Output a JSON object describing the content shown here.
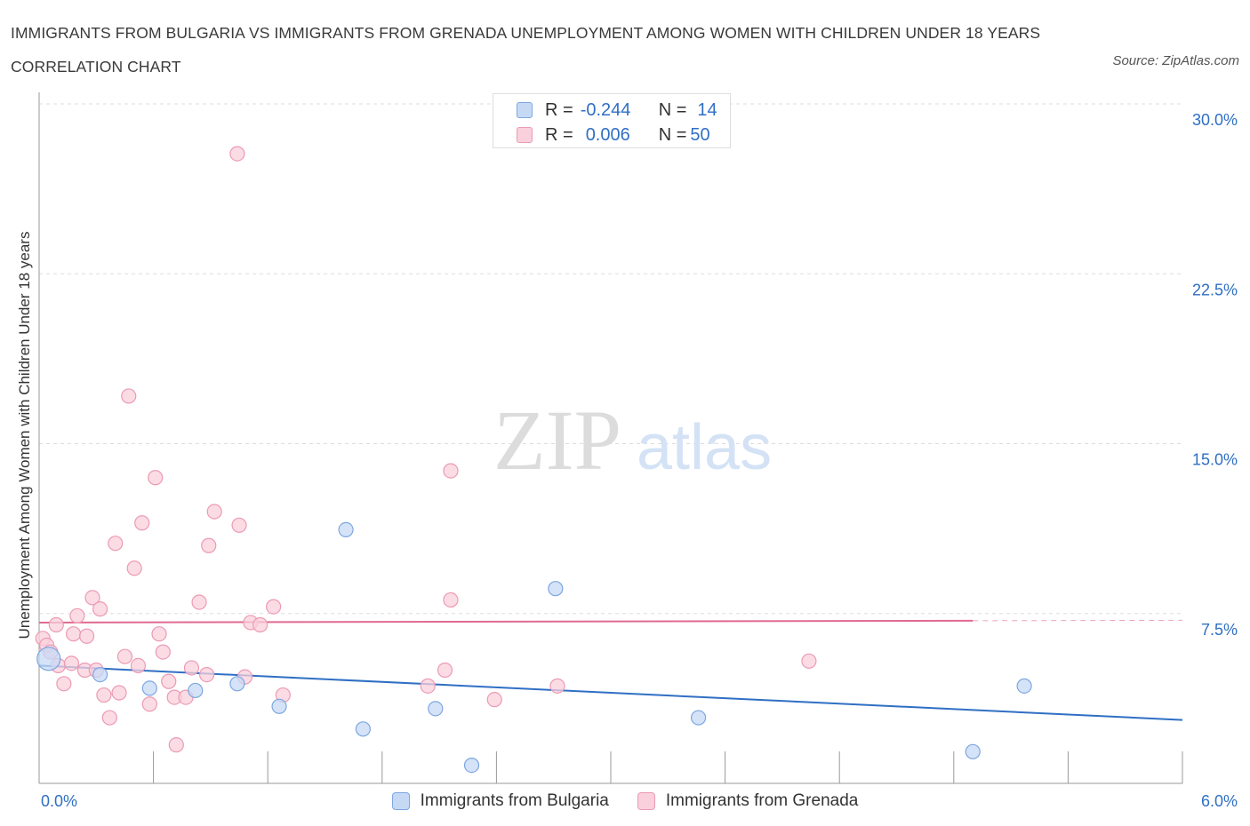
{
  "header": {
    "title": "IMMIGRANTS FROM BULGARIA VS IMMIGRANTS FROM GRENADA UNEMPLOYMENT AMONG WOMEN WITH CHILDREN UNDER 18 YEARS CORRELATION CHART",
    "source": "Source: ZipAtlas.com"
  },
  "watermark": {
    "zip": "ZIP",
    "atlas": "atlas"
  },
  "colors": {
    "bulgaria_fill": "#c5d9f5",
    "bulgaria_stroke": "#7ea6df",
    "bulgaria_line": "#2f6fc4",
    "grenada_fill": "#f9d0dc",
    "grenada_stroke": "#ec9ab4",
    "grenada_line": "#e0698f",
    "axis_text": "#2f6fc4",
    "grid": "#dddddd"
  },
  "legend": {
    "rows": [
      {
        "r_label": "R =",
        "r_value": "-0.244",
        "n_label": "N =",
        "n_value": "14"
      },
      {
        "r_label": "R =",
        "r_value": "0.006",
        "n_label": "N =",
        "n_value": "50"
      }
    ],
    "bottom": [
      "Immigrants from Bulgaria",
      "Immigrants from Grenada"
    ]
  },
  "chart_data": {
    "type": "scatter",
    "title": "IMMIGRANTS FROM BULGARIA VS IMMIGRANTS FROM GRENADA UNEMPLOYMENT AMONG WOMEN WITH CHILDREN UNDER 18 YEARS CORRELATION CHART",
    "xlabel": "",
    "ylabel": "Unemployment Among Women with Children Under 18 years",
    "xlim": [
      0,
      6
    ],
    "ylim": [
      0,
      30
    ],
    "x_tick_labels": [
      "0.0%",
      "6.0%"
    ],
    "y_tick_labels": [
      "7.5%",
      "15.0%",
      "22.5%",
      "30.0%"
    ],
    "y_ticks": [
      7.5,
      15.0,
      22.5,
      30.0
    ],
    "grid": true,
    "legend_position": "top-center",
    "series": [
      {
        "name": "Immigrants from Bulgaria",
        "points": [
          {
            "x": 0.05,
            "y": 5.5
          },
          {
            "x": 0.32,
            "y": 4.8
          },
          {
            "x": 0.58,
            "y": 4.2
          },
          {
            "x": 0.82,
            "y": 4.1
          },
          {
            "x": 1.04,
            "y": 4.4
          },
          {
            "x": 1.26,
            "y": 3.4
          },
          {
            "x": 1.61,
            "y": 11.2
          },
          {
            "x": 1.7,
            "y": 2.4
          },
          {
            "x": 2.08,
            "y": 3.3
          },
          {
            "x": 2.27,
            "y": 0.8
          },
          {
            "x": 2.71,
            "y": 8.6
          },
          {
            "x": 3.46,
            "y": 2.9
          },
          {
            "x": 4.9,
            "y": 1.4
          },
          {
            "x": 5.17,
            "y": 4.3
          }
        ],
        "trend": {
          "x": [
            0,
            6
          ],
          "y": [
            5.2,
            2.8
          ]
        }
      },
      {
        "name": "Immigrants from Grenada",
        "points": [
          {
            "x": 0.02,
            "y": 6.4
          },
          {
            "x": 0.04,
            "y": 6.1
          },
          {
            "x": 0.06,
            "y": 5.8
          },
          {
            "x": 0.09,
            "y": 7.0
          },
          {
            "x": 0.1,
            "y": 5.2
          },
          {
            "x": 0.13,
            "y": 4.4
          },
          {
            "x": 0.17,
            "y": 5.3
          },
          {
            "x": 0.18,
            "y": 6.6
          },
          {
            "x": 0.2,
            "y": 7.4
          },
          {
            "x": 0.24,
            "y": 5.0
          },
          {
            "x": 0.25,
            "y": 6.5
          },
          {
            "x": 0.28,
            "y": 8.2
          },
          {
            "x": 0.3,
            "y": 5.0
          },
          {
            "x": 0.32,
            "y": 7.7
          },
          {
            "x": 0.34,
            "y": 3.9
          },
          {
            "x": 0.37,
            "y": 2.9
          },
          {
            "x": 0.4,
            "y": 10.6
          },
          {
            "x": 0.42,
            "y": 4.0
          },
          {
            "x": 0.45,
            "y": 5.6
          },
          {
            "x": 0.47,
            "y": 17.1
          },
          {
            "x": 0.5,
            "y": 9.5
          },
          {
            "x": 0.52,
            "y": 5.2
          },
          {
            "x": 0.54,
            "y": 11.5
          },
          {
            "x": 0.58,
            "y": 3.5
          },
          {
            "x": 0.61,
            "y": 13.5
          },
          {
            "x": 0.63,
            "y": 6.6
          },
          {
            "x": 0.65,
            "y": 5.8
          },
          {
            "x": 0.68,
            "y": 4.5
          },
          {
            "x": 0.71,
            "y": 3.8
          },
          {
            "x": 0.72,
            "y": 1.7
          },
          {
            "x": 0.77,
            "y": 3.8
          },
          {
            "x": 0.8,
            "y": 5.1
          },
          {
            "x": 0.84,
            "y": 8.0
          },
          {
            "x": 0.88,
            "y": 4.8
          },
          {
            "x": 0.89,
            "y": 10.5
          },
          {
            "x": 0.92,
            "y": 12.0
          },
          {
            "x": 1.04,
            "y": 27.8
          },
          {
            "x": 1.05,
            "y": 11.4
          },
          {
            "x": 1.08,
            "y": 4.7
          },
          {
            "x": 1.11,
            "y": 7.1
          },
          {
            "x": 1.16,
            "y": 7.0
          },
          {
            "x": 1.23,
            "y": 7.8
          },
          {
            "x": 1.28,
            "y": 3.9
          },
          {
            "x": 2.04,
            "y": 4.3
          },
          {
            "x": 2.13,
            "y": 5.0
          },
          {
            "x": 2.16,
            "y": 8.1
          },
          {
            "x": 2.16,
            "y": 13.8
          },
          {
            "x": 2.39,
            "y": 3.7
          },
          {
            "x": 2.72,
            "y": 4.3
          },
          {
            "x": 4.04,
            "y": 5.4
          }
        ],
        "trend": {
          "x": [
            0,
            6
          ],
          "y": [
            7.1,
            7.2
          ]
        }
      }
    ]
  }
}
